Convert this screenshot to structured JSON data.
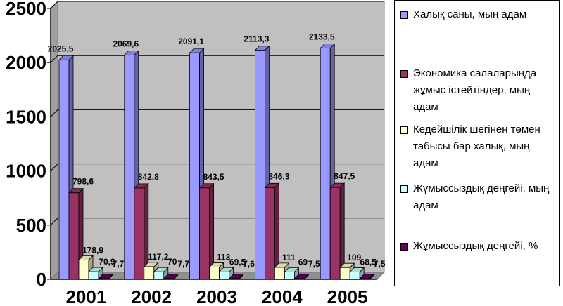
{
  "chart_data": {
    "type": "bar",
    "categories": [
      "2001",
      "2002",
      "2003",
      "2004",
      "2005"
    ],
    "ylim": [
      0,
      2500
    ],
    "yticks": [
      "0",
      "500",
      "1000",
      "1500",
      "2000",
      "2500"
    ],
    "series": [
      {
        "name": "Халық саны, мың адам",
        "color": "#9999ff",
        "values": [
          2025.5,
          2069.6,
          2091.1,
          2113.3,
          2133.5
        ],
        "labels": [
          "2025,5",
          "2069,6",
          "2091,1",
          "2113,3",
          "2133,5"
        ]
      },
      {
        "name": "Экономика салаларында жұмыс істейтіндер, мың адам",
        "color": "#993366",
        "values": [
          798.6,
          842.8,
          843.5,
          846.3,
          847.5
        ],
        "labels": [
          "798,6",
          "842,8",
          "843,5",
          "846,3",
          "847,5"
        ]
      },
      {
        "name": "Кедейшілік шегінен төмен табысы бар халық, мың адам",
        "color": "#ffffcc",
        "values": [
          178.9,
          117.2,
          113,
          111,
          109
        ],
        "labels": [
          "178,9",
          "117,2",
          "113",
          "111",
          "109"
        ]
      },
      {
        "name": "Жұмыссыздық деңгейі, мың адам",
        "color": "#ccffff",
        "values": [
          70.9,
          70,
          69.5,
          69,
          68.5
        ],
        "labels": [
          "70,9",
          "70",
          "69,5",
          "69",
          "68,5"
        ]
      },
      {
        "name": "Жұмыссыздық деңгейі, %",
        "color": "#660066",
        "values": [
          7.7,
          7.7,
          7.6,
          7.5,
          7.5
        ],
        "labels": [
          "7,7",
          "7,7",
          "7,6",
          "7,5",
          "7,5"
        ]
      }
    ],
    "grid": true,
    "legend_position": "right"
  }
}
